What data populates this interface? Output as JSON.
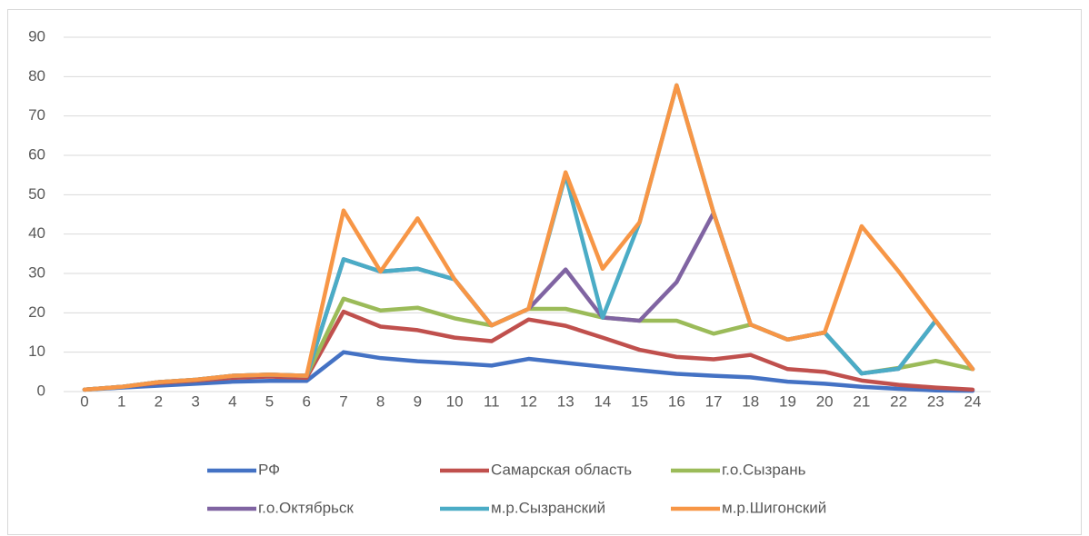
{
  "chart_data": {
    "type": "line",
    "x": [
      0,
      1,
      2,
      3,
      4,
      5,
      6,
      7,
      8,
      9,
      10,
      11,
      12,
      13,
      14,
      15,
      16,
      17,
      18,
      19,
      20,
      21,
      22,
      23,
      24
    ],
    "xlim": [
      0,
      24
    ],
    "ylim": [
      0,
      90
    ],
    "yticks": [
      0,
      10,
      20,
      30,
      40,
      50,
      60,
      70,
      80,
      90
    ],
    "grid": true,
    "legend": "bottom",
    "series": [
      {
        "name": "РФ",
        "color": "#4472c4",
        "values": [
          0.5,
          1,
          1.5,
          2,
          2.5,
          2.7,
          2.7,
          10,
          8.5,
          7.7,
          7.2,
          6.6,
          8.3,
          7.3,
          6.3,
          5.4,
          4.5,
          4,
          3.6,
          2.5,
          2,
          1.2,
          0.7,
          0.3,
          0.2
        ]
      },
      {
        "name": "Самарская область",
        "color": "#c0504d",
        "values": [
          0.5,
          1.2,
          2.2,
          2.8,
          3.5,
          3.8,
          3.5,
          20.3,
          16.5,
          15.6,
          13.7,
          12.8,
          18.3,
          16.7,
          13.7,
          10.6,
          8.8,
          8.2,
          9.3,
          5.7,
          5,
          2.8,
          1.7,
          1,
          0.5
        ]
      },
      {
        "name": "г.о.Сызрань",
        "color": "#9bbb59",
        "values": [
          0.5,
          1.2,
          2.4,
          3,
          4,
          4.3,
          4,
          23.6,
          20.6,
          21.3,
          18.6,
          16.8,
          21,
          21,
          18.8,
          18,
          18,
          14.7,
          17,
          13.2,
          15,
          4.6,
          6,
          7.8,
          5.7
        ]
      },
      {
        "name": "г.о.Октябрьск",
        "color": "#8064a2",
        "values": [
          0.5,
          1.2,
          2.4,
          3,
          4,
          4.3,
          4,
          33.6,
          30.5,
          31.2,
          28.5,
          16.8,
          21,
          31,
          18.8,
          18,
          27.8,
          45.4,
          17,
          13.2,
          15,
          4.6,
          5.8,
          18,
          5.7
        ]
      },
      {
        "name": "м.р.Сызранский",
        "color": "#4bacc6",
        "values": [
          0.5,
          1.2,
          2.4,
          3,
          4,
          4.3,
          4,
          33.6,
          30.5,
          31.2,
          28.5,
          16.8,
          21,
          55,
          18.8,
          43,
          77.8,
          45.4,
          17,
          13.2,
          15,
          4.6,
          5.8,
          18,
          5.7
        ]
      },
      {
        "name": "м.р.Шигонский",
        "color": "#f79646",
        "values": [
          0.5,
          1.2,
          2.4,
          3,
          4,
          4.3,
          4,
          46,
          30.5,
          44,
          28.5,
          16.8,
          21,
          55.7,
          31.2,
          43,
          77.8,
          45.4,
          17,
          13.2,
          15,
          42,
          30.5,
          18,
          5.7
        ]
      }
    ]
  }
}
